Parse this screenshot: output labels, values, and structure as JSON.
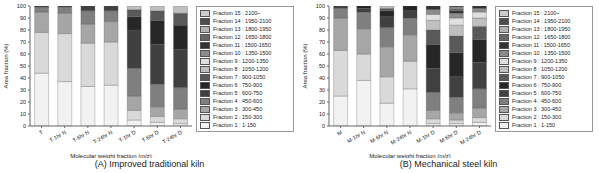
{
  "chart_data": [
    {
      "type": "bar",
      "title": "(A) Improved traditional kiln",
      "x_label": "Molecular weight fraction (m/z)",
      "y_label": "Area fraction (%)",
      "stacked": true,
      "grid": false,
      "legend": "right",
      "categories": [
        "T",
        "T-1hr N",
        "T-6hr N",
        "T-24hr N",
        "T-1hr D",
        "T-6hr D",
        "T-24hr D"
      ],
      "ylim": [
        0,
        100
      ],
      "yticks": [
        0,
        10,
        20,
        30,
        40,
        50,
        60,
        70,
        80,
        90,
        100
      ],
      "series": [
        {
          "name": "Fraction 1 : 1-150",
          "color": "#f2f2f2",
          "values": [
            44,
            37,
            33,
            34,
            5,
            3,
            2
          ]
        },
        {
          "name": "Fraction 2 : 150-300",
          "color": "#d9d9d9",
          "values": [
            34,
            40,
            36,
            36,
            8,
            5,
            4
          ]
        },
        {
          "name": "Fraction 3 : 300-450",
          "color": "#a6a6a6",
          "values": [
            17,
            17,
            16,
            17,
            12,
            8,
            8
          ]
        },
        {
          "name": "Fraction 4 : 450-600",
          "color": "#7f7f7f",
          "values": [
            4,
            5,
            11,
            9,
            23,
            19,
            18
          ]
        },
        {
          "name": "Fraction 5 : 600-750",
          "color": "#404040",
          "values": [
            1,
            1,
            4,
            4,
            32,
            33,
            32
          ]
        },
        {
          "name": "Fraction 6 : 750-900",
          "color": "#262626",
          "values": [
            0,
            0,
            0,
            0,
            11,
            20,
            20
          ]
        },
        {
          "name": "Fraction 7 : 900-1050",
          "color": "#595959",
          "values": [
            0,
            0,
            0,
            0,
            6,
            8,
            10
          ]
        },
        {
          "name": "Fraction 8 : 1050-1200",
          "color": "#bfbfbf",
          "values": [
            0,
            0,
            0,
            0,
            3,
            4,
            6
          ]
        },
        {
          "name": "Fraction 9 : 1200-1350",
          "color": "#e0e0e0",
          "values": [
            0,
            0,
            0,
            0,
            0,
            0,
            0
          ]
        },
        {
          "name": "Fraction 10 : 1350-1500",
          "color": "#8c8c8c",
          "values": [
            0,
            0,
            0,
            0,
            0,
            0,
            0
          ]
        },
        {
          "name": "Fraction 11 : 1500-1650",
          "color": "#333333",
          "values": [
            0,
            0,
            0,
            0,
            0,
            0,
            0
          ]
        },
        {
          "name": "Fraction 12 : 1650-1800",
          "color": "#666666",
          "values": [
            0,
            0,
            0,
            0,
            0,
            0,
            0
          ]
        },
        {
          "name": "Fraction 13 : 1800-1950",
          "color": "#b3b3b3",
          "values": [
            0,
            0,
            0,
            0,
            0,
            0,
            0
          ]
        },
        {
          "name": "Fraction 14 : 1950-2100",
          "color": "#4d4d4d",
          "values": [
            0,
            0,
            0,
            0,
            0,
            0,
            0
          ]
        },
        {
          "name": "Fraction 15 : 2100~",
          "color": "#cccccc",
          "values": [
            0,
            0,
            0,
            0,
            0,
            0,
            0
          ]
        }
      ]
    },
    {
      "type": "bar",
      "title": "(B) Mechanical steel kiln",
      "x_label": "Molecular weight fraction (m/z)",
      "y_label": "Area fraction (%)",
      "stacked": true,
      "grid": false,
      "legend": "right",
      "categories": [
        "M",
        "M-1hr N",
        "M-6hr N",
        "M-24hr N",
        "M-1hr D",
        "M-6hr D",
        "M-24hr D"
      ],
      "ylim": [
        0,
        100
      ],
      "yticks": [
        0,
        10,
        20,
        30,
        40,
        50,
        60,
        70,
        80,
        90,
        100
      ],
      "series": [
        {
          "name": "Fraction 1 : 1-150",
          "color": "#f2f2f2",
          "values": [
            25,
            38,
            19,
            31,
            2,
            2,
            3
          ]
        },
        {
          "name": "Fraction 2 : 150-300",
          "color": "#d9d9d9",
          "values": [
            38,
            22,
            22,
            23,
            4,
            3,
            4
          ]
        },
        {
          "name": "Fraction 3 : 300-450",
          "color": "#a6a6a6",
          "values": [
            27,
            21,
            25,
            22,
            7,
            6,
            8
          ]
        },
        {
          "name": "Fraction 4 : 450-600",
          "color": "#7f7f7f",
          "values": [
            8,
            14,
            16,
            14,
            15,
            13,
            16
          ]
        },
        {
          "name": "Fraction 5 : 600-750",
          "color": "#404040",
          "values": [
            2,
            3,
            9,
            6,
            20,
            17,
            22
          ]
        },
        {
          "name": "Fraction 6 : 750-900",
          "color": "#262626",
          "values": [
            0,
            2,
            5,
            4,
            20,
            20,
            19
          ]
        },
        {
          "name": "Fraction 7 : 900-1050",
          "color": "#595959",
          "values": [
            0,
            0,
            2,
            0,
            12,
            14,
            11
          ]
        },
        {
          "name": "Fraction 8 : 1050-1200",
          "color": "#bfbfbf",
          "values": [
            0,
            0,
            2,
            0,
            8,
            9,
            7
          ]
        },
        {
          "name": "Fraction 9 : 1200-1350",
          "color": "#e0e0e0",
          "values": [
            0,
            0,
            0,
            0,
            5,
            6,
            5
          ]
        },
        {
          "name": "Fraction 10 : 1350-1500",
          "color": "#8c8c8c",
          "values": [
            0,
            0,
            0,
            0,
            4,
            4,
            3
          ]
        },
        {
          "name": "Fraction 11 : 1500-1650",
          "color": "#333333",
          "values": [
            0,
            0,
            0,
            0,
            3,
            2,
            2
          ]
        },
        {
          "name": "Fraction 12 : 1650-1800",
          "color": "#666666",
          "values": [
            0,
            0,
            0,
            0,
            0,
            2,
            0
          ]
        },
        {
          "name": "Fraction 13 : 1800-1950",
          "color": "#b3b3b3",
          "values": [
            0,
            0,
            0,
            0,
            0,
            1,
            0
          ]
        },
        {
          "name": "Fraction 14 : 1950-2100",
          "color": "#4d4d4d",
          "values": [
            0,
            0,
            0,
            0,
            0,
            1,
            0
          ]
        },
        {
          "name": "Fraction 15 : 2100~",
          "color": "#cccccc",
          "values": [
            0,
            0,
            0,
            0,
            0,
            0,
            0
          ]
        }
      ]
    }
  ]
}
